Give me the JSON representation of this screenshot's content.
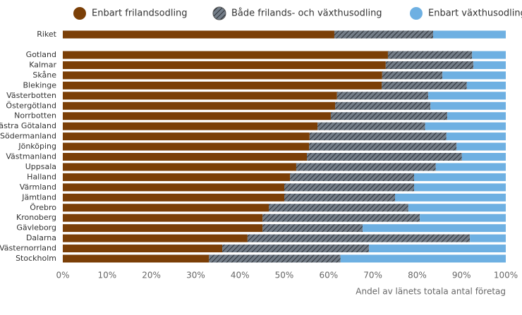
{
  "chart_data": {
    "type": "stacked-barh",
    "xlabel": "Andel av länets totala antal företag",
    "categories": [
      "Riket",
      "Gotland",
      "Kalmar",
      "Skåne",
      "Blekinge",
      "Västerbotten",
      "Östergötland",
      "Norrbotten",
      "Västra Götaland",
      "Södermanland",
      "Jönköping",
      "Västmanland",
      "Uppsala",
      "Halland",
      "Värmland",
      "Jämtland",
      "Örebro",
      "Kronoberg",
      "Gävleborg",
      "Dalarna",
      "Västernorrland",
      "Stockholm"
    ],
    "series": [
      {
        "name": "Enbart frilandsodling",
        "color": "#7b3f07",
        "values": [
          61.3,
          73.4,
          72.9,
          72.1,
          72.0,
          61.9,
          61.5,
          60.5,
          57.5,
          55.7,
          55.6,
          55.1,
          52.7,
          51.3,
          50.0,
          50.0,
          46.5,
          45.1,
          45.1,
          41.7,
          36.0,
          33.0
        ]
      },
      {
        "name": "Både frilands- och växthusodling",
        "color": "#737d88",
        "pattern": "hatch",
        "values": [
          22.3,
          19.0,
          19.8,
          13.6,
          19.2,
          20.6,
          21.5,
          26.3,
          24.3,
          30.9,
          33.3,
          35.0,
          31.5,
          28.0,
          29.3,
          25.0,
          31.5,
          35.5,
          22.6,
          50.2,
          33.1,
          29.7
        ]
      },
      {
        "name": "Enbart växthusodling",
        "color": "#6eb0e2",
        "values": [
          16.4,
          7.6,
          7.3,
          14.3,
          8.8,
          17.5,
          17.0,
          13.2,
          18.2,
          13.4,
          11.1,
          9.9,
          15.8,
          20.7,
          20.7,
          25.0,
          22.0,
          19.4,
          32.3,
          8.1,
          30.9,
          37.3
        ]
      }
    ],
    "xlim": [
      0,
      100
    ],
    "xticks": [
      {
        "value": 0,
        "label": "0%"
      },
      {
        "value": 10,
        "label": "10%"
      },
      {
        "value": 20,
        "label": "20%"
      },
      {
        "value": 30,
        "label": "30%"
      },
      {
        "value": 40,
        "label": "40%"
      },
      {
        "value": 50,
        "label": "50%"
      },
      {
        "value": 60,
        "label": "60%"
      },
      {
        "value": 70,
        "label": "70%"
      },
      {
        "value": 80,
        "label": "80%"
      },
      {
        "value": 90,
        "label": "90%"
      },
      {
        "value": 100,
        "label": "100%"
      }
    ],
    "grid": false,
    "legend": "top"
  }
}
